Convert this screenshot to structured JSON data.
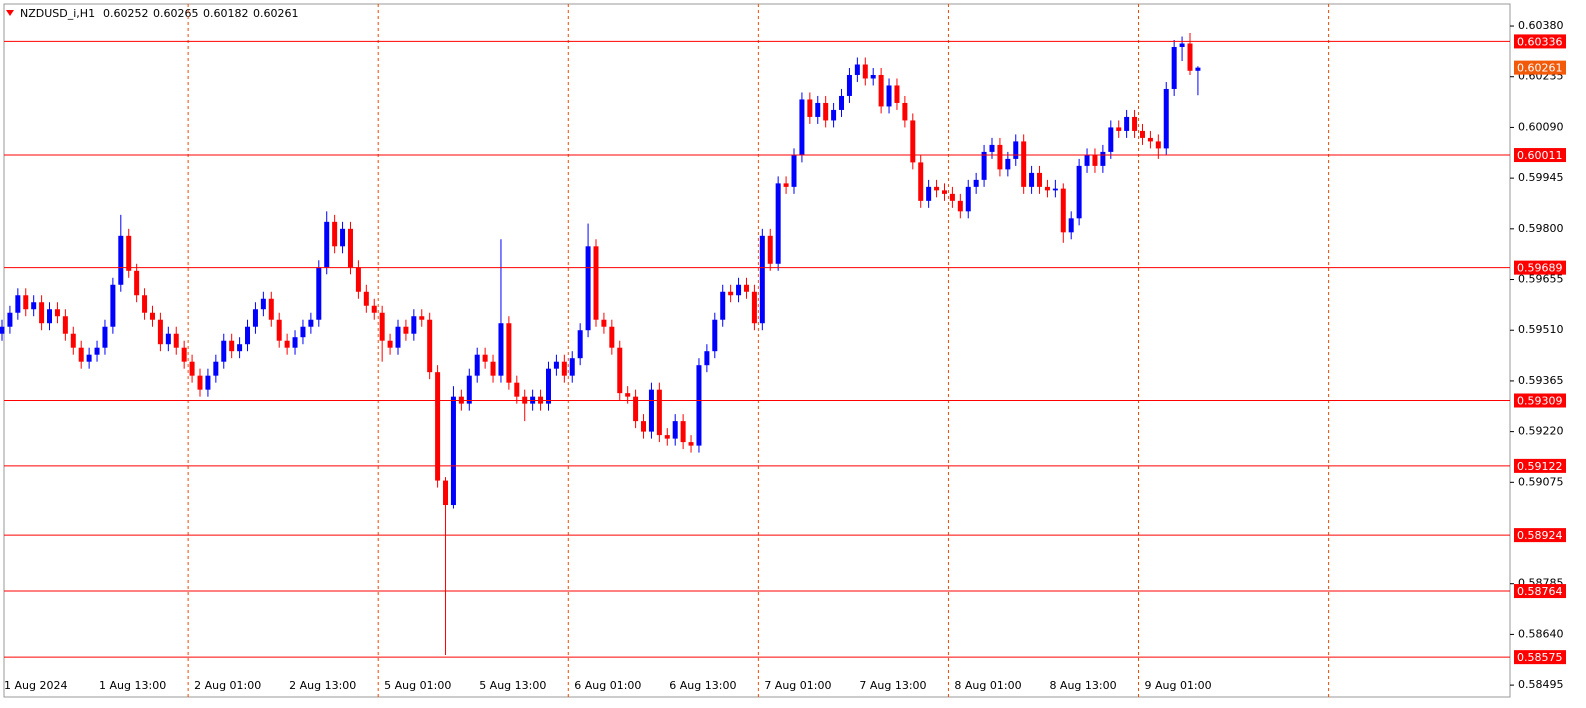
{
  "chart_data": {
    "type": "candlestick",
    "title": "NZDUSD_i,H1",
    "up_color": "#0000ff",
    "down_color": "#ff0000",
    "level_color": "#ff0000",
    "price_color": "#f25a0a",
    "grid_color": "#f04a00",
    "ylim": [
      0.58461,
      0.60443
    ],
    "yticks": [
      {
        "value": 0.6038,
        "label": "0.60380"
      },
      0.60235,
      {
        "value": 0.6009,
        "label": "0.60090"
      },
      0.59945,
      {
        "value": 0.598,
        "label": "0.59800"
      },
      0.59655,
      {
        "value": 0.5951,
        "label": "0.59510"
      },
      0.59365,
      {
        "value": 0.5922,
        "label": "0.59220"
      },
      0.59075,
      0.58785,
      {
        "value": 0.5864,
        "label": "0.58640"
      },
      0.58495
    ],
    "levels": [
      0.60336,
      0.60011,
      0.59689,
      0.59309,
      0.59122,
      0.58924,
      0.58764,
      0.58575
    ],
    "categories": [
      "1 Aug 2024",
      null,
      null,
      null,
      null,
      null,
      null,
      null,
      null,
      null,
      null,
      null,
      "1 Aug 13:00",
      null,
      null,
      null,
      null,
      null,
      null,
      null,
      null,
      null,
      null,
      null,
      "2 Aug 01:00",
      null,
      null,
      null,
      null,
      null,
      null,
      null,
      null,
      null,
      null,
      null,
      "2 Aug 13:00",
      null,
      null,
      null,
      null,
      null,
      null,
      null,
      null,
      null,
      null,
      null,
      "5 Aug 01:00",
      null,
      null,
      null,
      null,
      null,
      null,
      null,
      null,
      null,
      null,
      null,
      "5 Aug 13:00",
      null,
      null,
      null,
      null,
      null,
      null,
      null,
      null,
      null,
      null,
      null,
      "6 Aug 01:00",
      null,
      null,
      null,
      null,
      null,
      null,
      null,
      null,
      null,
      null,
      null,
      "6 Aug 13:00",
      null,
      null,
      null,
      null,
      null,
      null,
      null,
      null,
      null,
      null,
      null,
      "7 Aug 01:00",
      null,
      null,
      null,
      null,
      null,
      null,
      null,
      null,
      null,
      null,
      null,
      "7 Aug 13:00",
      null,
      null,
      null,
      null,
      null,
      null,
      null,
      null,
      null,
      null,
      null,
      "8 Aug 01:00",
      null,
      null,
      null,
      null,
      null,
      null,
      null,
      null,
      null,
      null,
      null,
      "8 Aug 13:00",
      null,
      null,
      null,
      null,
      null,
      null,
      null,
      null,
      null,
      null,
      null,
      "9 Aug 01:00",
      null,
      null,
      null,
      null,
      null,
      null,
      null
    ],
    "candles": [
      [
        0.595,
        0.5954,
        0.5948,
        0.5952
      ],
      [
        0.5952,
        0.5958,
        0.595,
        0.5956
      ],
      [
        0.5956,
        0.5963,
        0.5954,
        0.5961
      ],
      [
        0.5961,
        0.5963,
        0.5955,
        0.5957
      ],
      [
        0.5957,
        0.5961,
        0.5955,
        0.5959
      ],
      [
        0.5959,
        0.5961,
        0.5951,
        0.5953
      ],
      [
        0.5953,
        0.5959,
        0.5951,
        0.5957
      ],
      [
        0.5957,
        0.5959,
        0.5953,
        0.5955
      ],
      [
        0.5955,
        0.5957,
        0.5948,
        0.595
      ],
      [
        0.595,
        0.5952,
        0.5944,
        0.5946
      ],
      [
        0.5946,
        0.5948,
        0.594,
        0.5942
      ],
      [
        0.5942,
        0.5946,
        0.594,
        0.5944
      ],
      [
        0.5944,
        0.5948,
        0.5942,
        0.5946
      ],
      [
        0.5946,
        0.5954,
        0.5944,
        0.5952
      ],
      [
        0.5952,
        0.5966,
        0.595,
        0.5964
      ],
      [
        0.5964,
        0.5984,
        0.5962,
        0.5978
      ],
      [
        0.5978,
        0.598,
        0.5966,
        0.5968
      ],
      [
        0.5968,
        0.597,
        0.5959,
        0.5961
      ],
      [
        0.5961,
        0.5963,
        0.5954,
        0.5956
      ],
      [
        0.5956,
        0.5958,
        0.5952,
        0.5954
      ],
      [
        0.5954,
        0.5956,
        0.5945,
        0.5947
      ],
      [
        0.5947,
        0.5952,
        0.5945,
        0.595
      ],
      [
        0.595,
        0.5952,
        0.5944,
        0.5946
      ],
      [
        0.5946,
        0.5948,
        0.594,
        0.5942
      ],
      [
        0.5942,
        0.5944,
        0.5936,
        0.5938
      ],
      [
        0.5938,
        0.594,
        0.5932,
        0.5934
      ],
      [
        0.5934,
        0.594,
        0.5932,
        0.5938
      ],
      [
        0.5938,
        0.5944,
        0.5936,
        0.5942
      ],
      [
        0.5942,
        0.595,
        0.594,
        0.5948
      ],
      [
        0.5948,
        0.595,
        0.5943,
        0.5945
      ],
      [
        0.5945,
        0.5949,
        0.5943,
        0.5947
      ],
      [
        0.5947,
        0.5954,
        0.5945,
        0.5952
      ],
      [
        0.5952,
        0.5959,
        0.595,
        0.5957
      ],
      [
        0.5957,
        0.5962,
        0.5955,
        0.596
      ],
      [
        0.596,
        0.5962,
        0.5952,
        0.5954
      ],
      [
        0.5954,
        0.5956,
        0.5946,
        0.5948
      ],
      [
        0.5948,
        0.595,
        0.5944,
        0.5946
      ],
      [
        0.5946,
        0.5951,
        0.5944,
        0.5949
      ],
      [
        0.5949,
        0.5954,
        0.5947,
        0.5952
      ],
      [
        0.5952,
        0.5956,
        0.595,
        0.5954
      ],
      [
        0.5954,
        0.5971,
        0.5952,
        0.5969
      ],
      [
        0.5969,
        0.5985,
        0.5967,
        0.5982
      ],
      [
        0.5982,
        0.5984,
        0.5973,
        0.5975
      ],
      [
        0.5975,
        0.5982,
        0.5973,
        0.598
      ],
      [
        0.598,
        0.5982,
        0.5967,
        0.5969
      ],
      [
        0.5969,
        0.5971,
        0.596,
        0.5962
      ],
      [
        0.5962,
        0.5964,
        0.5956,
        0.5958
      ],
      [
        0.5958,
        0.596,
        0.5954,
        0.5956
      ],
      [
        0.5956,
        0.5958,
        0.5942,
        0.5948
      ],
      [
        0.5948,
        0.595,
        0.5944,
        0.5946
      ],
      [
        0.5946,
        0.5954,
        0.5944,
        0.5952
      ],
      [
        0.5952,
        0.5954,
        0.5948,
        0.595
      ],
      [
        0.595,
        0.5957,
        0.5948,
        0.5955
      ],
      [
        0.5955,
        0.5957,
        0.5952,
        0.5954
      ],
      [
        0.5954,
        0.5956,
        0.5937,
        0.5939
      ],
      [
        0.5939,
        0.5941,
        0.5906,
        0.5908
      ],
      [
        0.5908,
        0.5909,
        0.58581,
        0.5901
      ],
      [
        0.5901,
        0.5935,
        0.59,
        0.5932
      ],
      [
        0.5932,
        0.5934,
        0.5928,
        0.593
      ],
      [
        0.593,
        0.594,
        0.5928,
        0.5938
      ],
      [
        0.5938,
        0.5946,
        0.5936,
        0.5944
      ],
      [
        0.5944,
        0.5946,
        0.594,
        0.5942
      ],
      [
        0.5942,
        0.5944,
        0.5936,
        0.5938
      ],
      [
        0.5938,
        0.5977,
        0.5936,
        0.5953
      ],
      [
        0.5953,
        0.5955,
        0.5934,
        0.5936
      ],
      [
        0.5936,
        0.5938,
        0.593,
        0.5932
      ],
      [
        0.5932,
        0.5934,
        0.5925,
        0.593
      ],
      [
        0.593,
        0.5934,
        0.5928,
        0.5932
      ],
      [
        0.5932,
        0.5934,
        0.5928,
        0.593
      ],
      [
        0.593,
        0.5942,
        0.5928,
        0.594
      ],
      [
        0.594,
        0.5944,
        0.5938,
        0.5942
      ],
      [
        0.5942,
        0.5944,
        0.5936,
        0.5938
      ],
      [
        0.5938,
        0.5945,
        0.5936,
        0.5943
      ],
      [
        0.5943,
        0.5953,
        0.5941,
        0.5951
      ],
      [
        0.5951,
        0.59815,
        0.5949,
        0.5975
      ],
      [
        0.5975,
        0.5977,
        0.5952,
        0.5954
      ],
      [
        0.5954,
        0.5956,
        0.595,
        0.5952
      ],
      [
        0.5952,
        0.5954,
        0.5944,
        0.5946
      ],
      [
        0.5946,
        0.5948,
        0.5931,
        0.5933
      ],
      [
        0.5933,
        0.5935,
        0.593,
        0.5932
      ],
      [
        0.5932,
        0.5934,
        0.5923,
        0.5925
      ],
      [
        0.5925,
        0.5927,
        0.592,
        0.5922
      ],
      [
        0.5922,
        0.5936,
        0.592,
        0.5934
      ],
      [
        0.5934,
        0.5936,
        0.5919,
        0.5921
      ],
      [
        0.5921,
        0.5923,
        0.5918,
        0.592
      ],
      [
        0.592,
        0.5927,
        0.5918,
        0.5925
      ],
      [
        0.5925,
        0.5927,
        0.5917,
        0.5919
      ],
      [
        0.5919,
        0.5921,
        0.5916,
        0.5918
      ],
      [
        0.5918,
        0.5943,
        0.5916,
        0.5941
      ],
      [
        0.5941,
        0.5947,
        0.5939,
        0.5945
      ],
      [
        0.5945,
        0.5956,
        0.5943,
        0.5954
      ],
      [
        0.5954,
        0.5964,
        0.5952,
        0.5962
      ],
      [
        0.5962,
        0.5964,
        0.5959,
        0.5961
      ],
      [
        0.5961,
        0.5966,
        0.5959,
        0.5964
      ],
      [
        0.5964,
        0.5966,
        0.596,
        0.5962
      ],
      [
        0.5962,
        0.5964,
        0.5951,
        0.5953
      ],
      [
        0.5953,
        0.598,
        0.5951,
        0.5978
      ],
      [
        0.5978,
        0.598,
        0.5968,
        0.597
      ],
      [
        0.597,
        0.5995,
        0.5968,
        0.5993
      ],
      [
        0.5993,
        0.5995,
        0.599,
        0.5992
      ],
      [
        0.5992,
        0.6003,
        0.599,
        0.6001
      ],
      [
        0.6001,
        0.6019,
        0.5999,
        0.6017
      ],
      [
        0.6017,
        0.6019,
        0.601,
        0.6012
      ],
      [
        0.6012,
        0.6018,
        0.601,
        0.6016
      ],
      [
        0.6016,
        0.6018,
        0.6009,
        0.6011
      ],
      [
        0.6011,
        0.6016,
        0.6009,
        0.6014
      ],
      [
        0.6014,
        0.602,
        0.6012,
        0.6018
      ],
      [
        0.6018,
        0.6026,
        0.6016,
        0.6024
      ],
      [
        0.6024,
        0.6029,
        0.6022,
        0.6027
      ],
      [
        0.6027,
        0.6029,
        0.6021,
        0.6023
      ],
      [
        0.6023,
        0.6026,
        0.6021,
        0.6024
      ],
      [
        0.6024,
        0.6026,
        0.6013,
        0.6015
      ],
      [
        0.6015,
        0.6023,
        0.6013,
        0.6021
      ],
      [
        0.6021,
        0.6023,
        0.6014,
        0.6016
      ],
      [
        0.6016,
        0.6018,
        0.6009,
        0.6011
      ],
      [
        0.6011,
        0.6013,
        0.5997,
        0.5999
      ],
      [
        0.5999,
        0.6001,
        0.5986,
        0.5988
      ],
      [
        0.5988,
        0.5994,
        0.5986,
        0.5992
      ],
      [
        0.5992,
        0.5994,
        0.5989,
        0.5991
      ],
      [
        0.5991,
        0.5993,
        0.5988,
        0.599
      ],
      [
        0.599,
        0.5992,
        0.5986,
        0.5988
      ],
      [
        0.5988,
        0.599,
        0.5983,
        0.5985
      ],
      [
        0.5985,
        0.5994,
        0.5983,
        0.5992
      ],
      [
        0.5992,
        0.5996,
        0.599,
        0.5994
      ],
      [
        0.5994,
        0.6004,
        0.5992,
        0.6002
      ],
      [
        0.6002,
        0.6006,
        0.6,
        0.6004
      ],
      [
        0.6004,
        0.6006,
        0.5995,
        0.5997
      ],
      [
        0.5997,
        0.6002,
        0.5995,
        0.6
      ],
      [
        0.6,
        0.6007,
        0.5998,
        0.6005
      ],
      [
        0.6005,
        0.6007,
        0.599,
        0.5992
      ],
      [
        0.5992,
        0.5998,
        0.599,
        0.5996
      ],
      [
        0.5996,
        0.5998,
        0.599,
        0.5992
      ],
      [
        0.5992,
        0.5994,
        0.5989,
        0.5991
      ],
      [
        0.5991,
        0.5994,
        0.5989,
        0.59915
      ],
      [
        0.59915,
        0.5993,
        0.5976,
        0.5979
      ],
      [
        0.5979,
        0.5985,
        0.5977,
        0.5983
      ],
      [
        0.5983,
        0.6,
        0.5981,
        0.5998
      ],
      [
        0.5998,
        0.6003,
        0.5996,
        0.6001
      ],
      [
        0.6001,
        0.6003,
        0.5996,
        0.5998
      ],
      [
        0.5998,
        0.6004,
        0.5996,
        0.6002
      ],
      [
        0.6002,
        0.6011,
        0.6,
        0.6009
      ],
      [
        0.6009,
        0.6011,
        0.6006,
        0.6008
      ],
      [
        0.6008,
        0.6014,
        0.6006,
        0.6012
      ],
      [
        0.6012,
        0.6014,
        0.6006,
        0.6008
      ],
      [
        0.6008,
        0.601,
        0.6004,
        0.6006
      ],
      [
        0.6006,
        0.6008,
        0.6003,
        0.6005
      ],
      [
        0.6005,
        0.6007,
        0.6,
        0.6003
      ],
      [
        0.6003,
        0.6022,
        0.6001,
        0.602
      ],
      [
        0.602,
        0.6034,
        0.6018,
        0.6032
      ],
      [
        0.6032,
        0.6035,
        0.6028,
        0.6033
      ],
      [
        0.6033,
        0.6036,
        0.6024,
        0.60252
      ],
      [
        0.60252,
        0.60265,
        0.60182,
        0.60261
      ]
    ]
  }
}
